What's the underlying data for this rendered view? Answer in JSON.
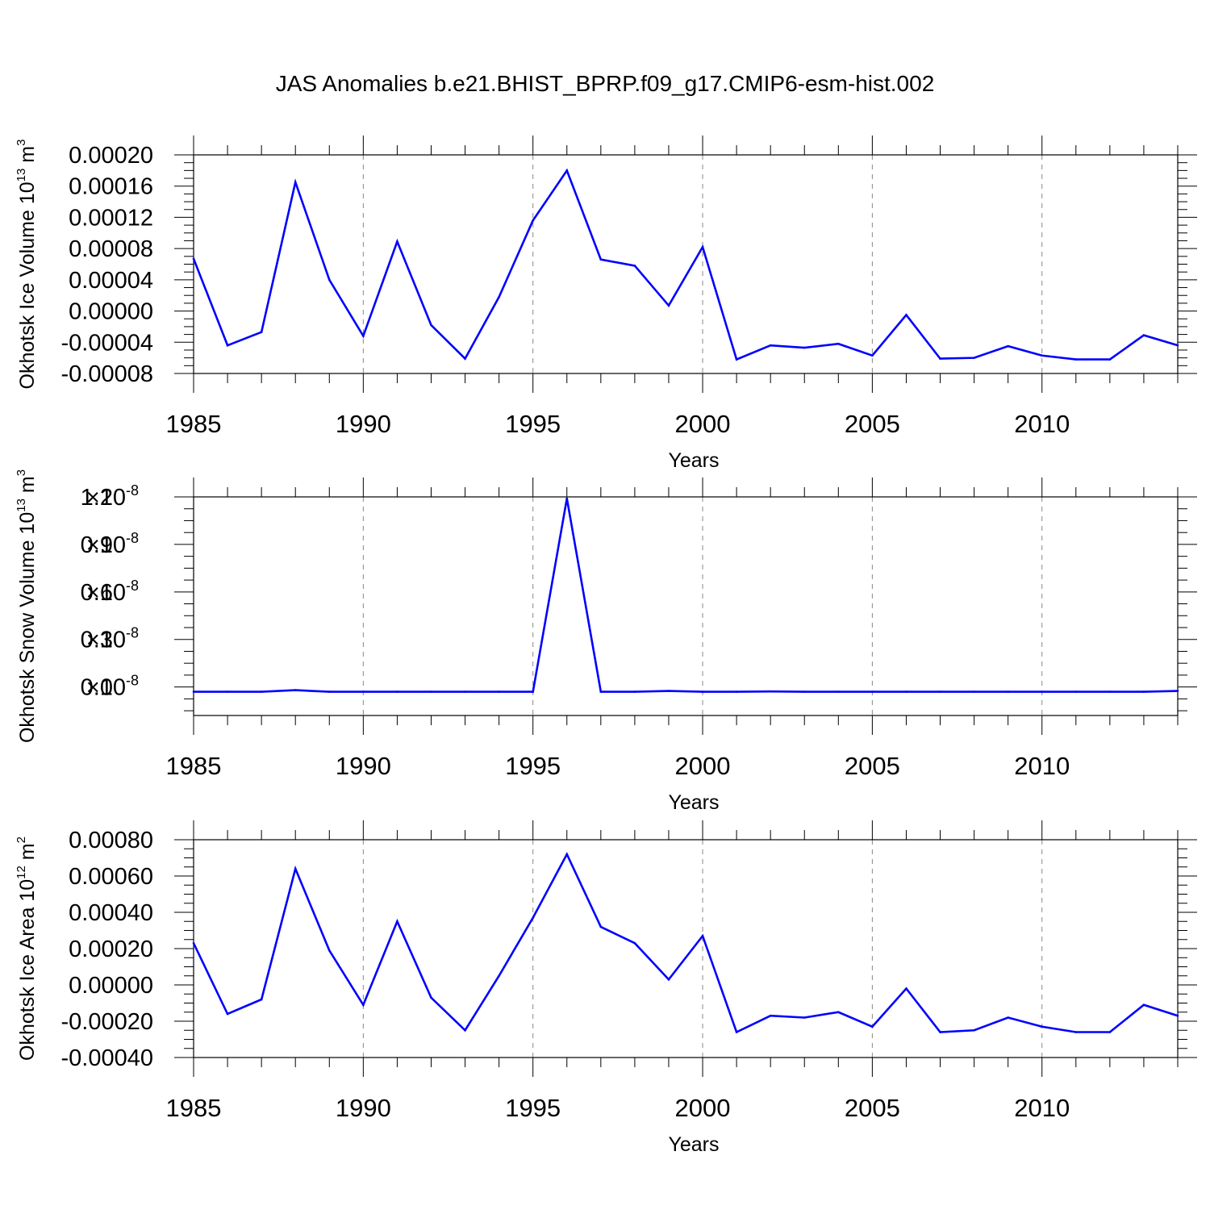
{
  "title": "JAS Anomalies b.e21.BHIST_BPRP.f09_g17.CMIP6-esm-hist.002",
  "line_color": "#0000ff",
  "chart_data": [
    {
      "type": "line",
      "ylabel": "Okhotsk Ice Volume 10",
      "ylabel_exp": "13",
      "ylabel_unit": " m",
      "ylabel_unit_exp": "3",
      "xlabel": "Years",
      "xlim": [
        1985,
        2014
      ],
      "ylim": [
        -8e-05,
        0.0002
      ],
      "x_ticks": [
        "1985",
        "1990",
        "1995",
        "2000",
        "2005",
        "2010"
      ],
      "y_ticks": [
        "0.00020",
        "0.00016",
        "0.00012",
        "0.00008",
        "0.00004",
        "0.00000",
        "-0.00004",
        "-0.00008"
      ],
      "y_tick_values": [
        0.0002,
        0.00016,
        0.00012,
        8e-05,
        4e-05,
        0.0,
        -4e-05,
        -8e-05
      ],
      "x": [
        1985,
        1986,
        1987,
        1988,
        1989,
        1990,
        1991,
        1992,
        1993,
        1994,
        1995,
        1996,
        1997,
        1998,
        1999,
        2000,
        2001,
        2002,
        2003,
        2004,
        2005,
        2006,
        2007,
        2008,
        2009,
        2010,
        2011,
        2012,
        2013,
        2014
      ],
      "values": [
        6.7e-05,
        -4.4e-05,
        -2.7e-05,
        0.000165,
        4e-05,
        -3.2e-05,
        8.9e-05,
        -1.8e-05,
        -6.1e-05,
        1.8e-05,
        0.000116,
        0.00018,
        6.6e-05,
        5.8e-05,
        7e-06,
        8.2e-05,
        -6.2e-05,
        -4.4e-05,
        -4.7e-05,
        -4.2e-05,
        -5.7e-05,
        -5e-06,
        -6.1e-05,
        -6e-05,
        -4.5e-05,
        -5.7e-05,
        -6.2e-05,
        -6.2e-05,
        -3.1e-05,
        -4.4e-05
      ]
    },
    {
      "type": "line",
      "ylabel": "Okhotsk Snow Volume 10",
      "ylabel_exp": "13",
      "ylabel_unit": " m",
      "ylabel_unit_exp": "3",
      "xlabel": "Years",
      "xlim": [
        1985,
        2014
      ],
      "ylim": [
        -0.18,
        1.2
      ],
      "y_scale_label": "×10",
      "y_scale_exp": "-8",
      "x_ticks": [
        "1985",
        "1990",
        "1995",
        "2000",
        "2005",
        "2010"
      ],
      "y_ticks": [
        "1.2",
        "0.9",
        "0.6",
        "0.3",
        "0.0"
      ],
      "y_tick_values": [
        1.2,
        0.9,
        0.6,
        0.3,
        0.0
      ],
      "x": [
        1985,
        1986,
        1987,
        1988,
        1989,
        1990,
        1991,
        1992,
        1993,
        1994,
        1995,
        1996,
        1997,
        1998,
        1999,
        2000,
        2001,
        2002,
        2003,
        2004,
        2005,
        2006,
        2007,
        2008,
        2009,
        2010,
        2011,
        2012,
        2013,
        2014
      ],
      "values": [
        -0.03,
        -0.03,
        -0.03,
        -0.02,
        -0.03,
        -0.03,
        -0.03,
        -0.03,
        -0.03,
        -0.03,
        -0.03,
        1.19,
        -0.03,
        -0.03,
        -0.025,
        -0.03,
        -0.03,
        -0.028,
        -0.03,
        -0.03,
        -0.03,
        -0.03,
        -0.03,
        -0.03,
        -0.03,
        -0.03,
        -0.03,
        -0.03,
        -0.03,
        -0.025
      ]
    },
    {
      "type": "line",
      "ylabel": "Okhotsk Ice Area 10",
      "ylabel_exp": "12",
      "ylabel_unit": " m",
      "ylabel_unit_exp": "2",
      "xlabel": "Years",
      "xlim": [
        1985,
        2014
      ],
      "ylim": [
        -0.0004,
        0.0008
      ],
      "x_ticks": [
        "1985",
        "1990",
        "1995",
        "2000",
        "2005",
        "2010"
      ],
      "y_ticks": [
        "0.00080",
        "0.00060",
        "0.00040",
        "0.00020",
        "0.00000",
        "-0.00020",
        "-0.00040"
      ],
      "y_tick_values": [
        0.0008,
        0.0006,
        0.0004,
        0.0002,
        0.0,
        -0.0002,
        -0.0004
      ],
      "x": [
        1985,
        1986,
        1987,
        1988,
        1989,
        1990,
        1991,
        1992,
        1993,
        1994,
        1995,
        1996,
        1997,
        1998,
        1999,
        2000,
        2001,
        2002,
        2003,
        2004,
        2005,
        2006,
        2007,
        2008,
        2009,
        2010,
        2011,
        2012,
        2013,
        2014
      ],
      "values": [
        0.00023,
        -0.00016,
        -8e-05,
        0.00064,
        0.00019,
        -0.00011,
        0.00035,
        -7e-05,
        -0.00025,
        5e-05,
        0.00037,
        0.00072,
        0.00032,
        0.00023,
        3e-05,
        0.00027,
        -0.00026,
        -0.00017,
        -0.00018,
        -0.00015,
        -0.00023,
        -2e-05,
        -0.00026,
        -0.00025,
        -0.00018,
        -0.00023,
        -0.00026,
        -0.00026,
        -0.00011,
        -0.00017
      ]
    }
  ]
}
